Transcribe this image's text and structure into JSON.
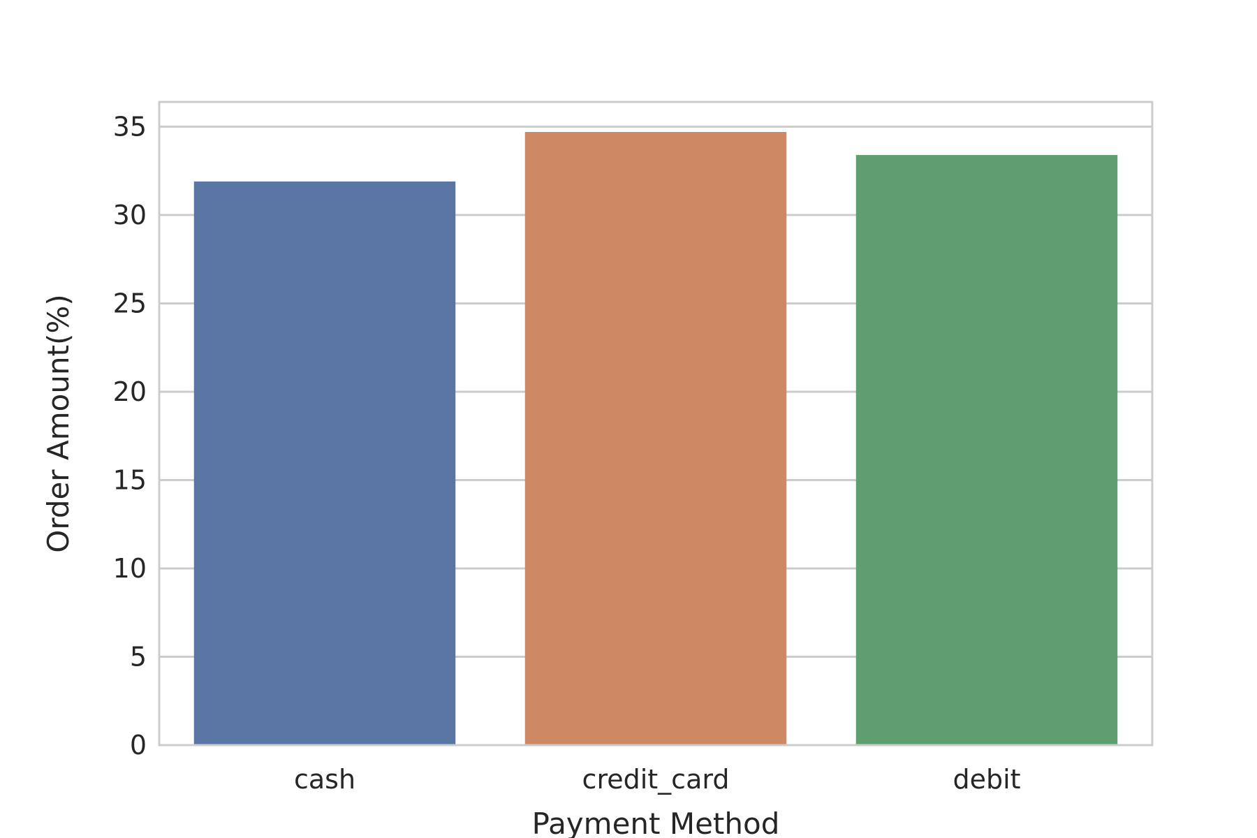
{
  "chart_data": {
    "type": "bar",
    "title": "",
    "xlabel": "Payment Method",
    "ylabel": "Order Amount(%)",
    "categories": [
      "cash",
      "credit_card",
      "debit"
    ],
    "values": [
      31.9,
      34.7,
      33.4
    ],
    "colors": [
      "#5975a4",
      "#cc8963",
      "#5f9e6e"
    ],
    "ylim": [
      0,
      36.4
    ],
    "yticks": [
      0,
      5,
      10,
      15,
      20,
      25,
      30,
      35
    ],
    "ytick_labels": [
      "0",
      "5",
      "10",
      "15",
      "20",
      "25",
      "30",
      "35"
    ],
    "grid": "horizontal",
    "style": {
      "background": "#ffffff",
      "grid_color": "#cccccc",
      "spine_color": "#cccccc",
      "text_color": "#262626"
    }
  }
}
